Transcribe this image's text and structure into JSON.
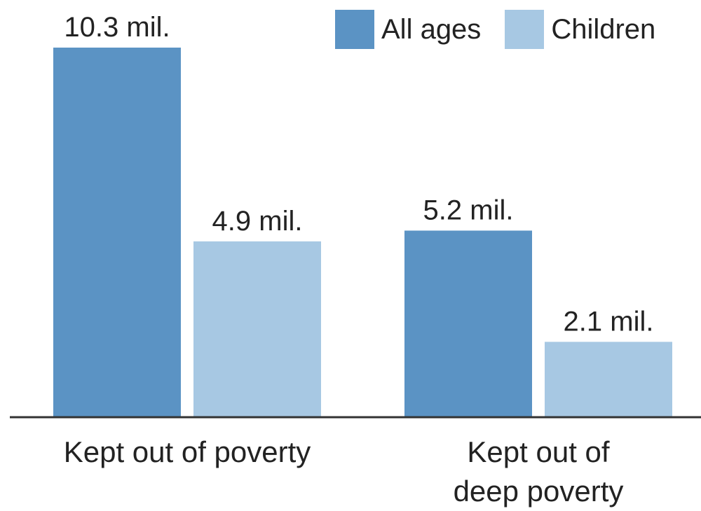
{
  "chart_data": {
    "type": "bar",
    "categories": [
      "Kept out of poverty",
      "Kept out of deep poverty"
    ],
    "category_lines": [
      [
        "Kept out of poverty"
      ],
      [
        "Kept out of",
        "deep poverty"
      ]
    ],
    "series": [
      {
        "name": "All ages",
        "values": [
          10.3,
          5.2
        ],
        "labels": [
          "10.3 mil.",
          "5.2 mil."
        ],
        "color": "#5b93c4"
      },
      {
        "name": "Children",
        "values": [
          4.9,
          2.1
        ],
        "labels": [
          "4.9 mil.",
          "2.1 mil."
        ],
        "color": "#a7c8e3"
      }
    ],
    "unit": "mil.",
    "ylim": [
      0,
      10.3
    ],
    "grid": false,
    "legend_position": "top-right",
    "axis_color": "#333333",
    "text_color": "#222222"
  }
}
